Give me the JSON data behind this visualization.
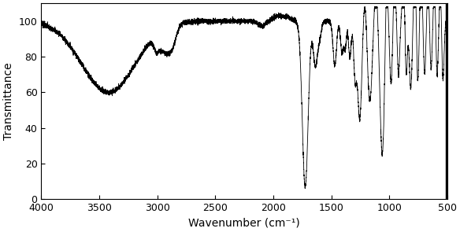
{
  "xlabel": "Wavenumber (cm⁻¹)",
  "ylabel": "Transmittance",
  "xlim": [
    4000,
    500
  ],
  "ylim": [
    0,
    110
  ],
  "yticks": [
    0,
    20,
    40,
    60,
    80,
    100
  ],
  "xticks": [
    4000,
    3500,
    3000,
    2500,
    2000,
    1500,
    1000,
    500
  ],
  "line_color": "#000000",
  "bg_color": "#ffffff",
  "figsize": [
    5.84,
    2.95
  ],
  "dpi": 100,
  "black_bar_start": 505,
  "black_bar_end": 520
}
